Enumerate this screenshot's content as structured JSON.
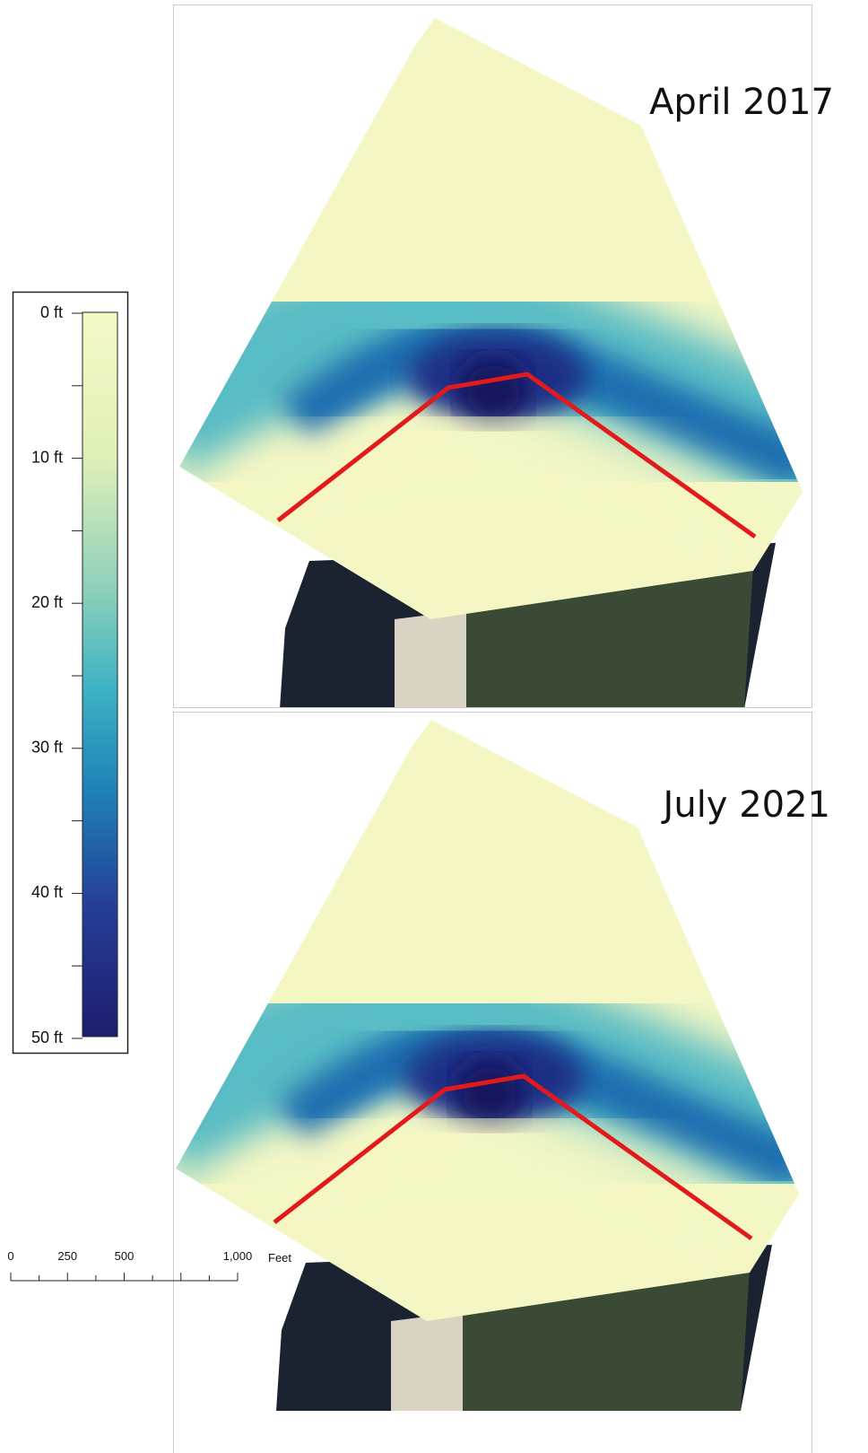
{
  "panels": [
    {
      "title": "April 2017"
    },
    {
      "title": "July 2021"
    }
  ],
  "legend": {
    "labels": [
      "0 ft",
      "10 ft",
      "20 ft",
      "30 ft",
      "40 ft",
      "50 ft"
    ]
  },
  "scale_bar": {
    "labels": [
      "0",
      "250",
      "500",
      "1,000"
    ],
    "unit": "Feet"
  }
}
